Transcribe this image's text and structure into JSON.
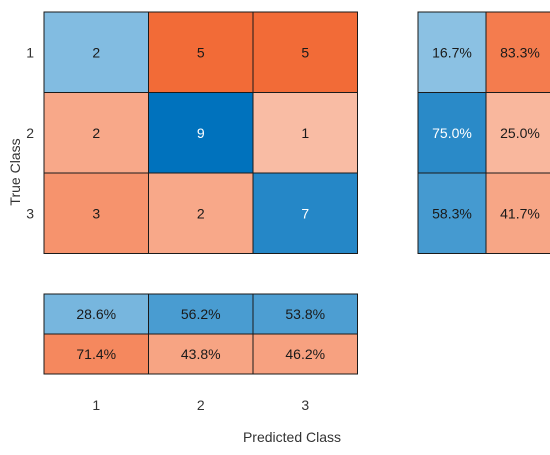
{
  "chart_data": {
    "type": "heatmap",
    "xlabel": "Predicted Class",
    "ylabel": "True Class",
    "classes": [
      "1",
      "2",
      "3"
    ],
    "matrix": [
      [
        2,
        5,
        5
      ],
      [
        2,
        9,
        1
      ],
      [
        3,
        2,
        7
      ]
    ],
    "row_summary": [
      [
        "16.7%",
        "83.3%"
      ],
      [
        "75.0%",
        "25.0%"
      ],
      [
        "58.3%",
        "41.7%"
      ]
    ],
    "column_summary": [
      [
        "28.6%",
        "56.2%",
        "53.8%"
      ],
      [
        "71.4%",
        "43.8%",
        "46.2%"
      ]
    ],
    "colors": {
      "correct_light": "#c4e2f3",
      "correct_dark": "#0072bd",
      "incorrect_light": "#fde2d7",
      "incorrect_dark": "#f26b37",
      "grid_line": "#1a1a1a",
      "text_dark": "#1a1a1a",
      "text_light": "#ffffff"
    }
  }
}
